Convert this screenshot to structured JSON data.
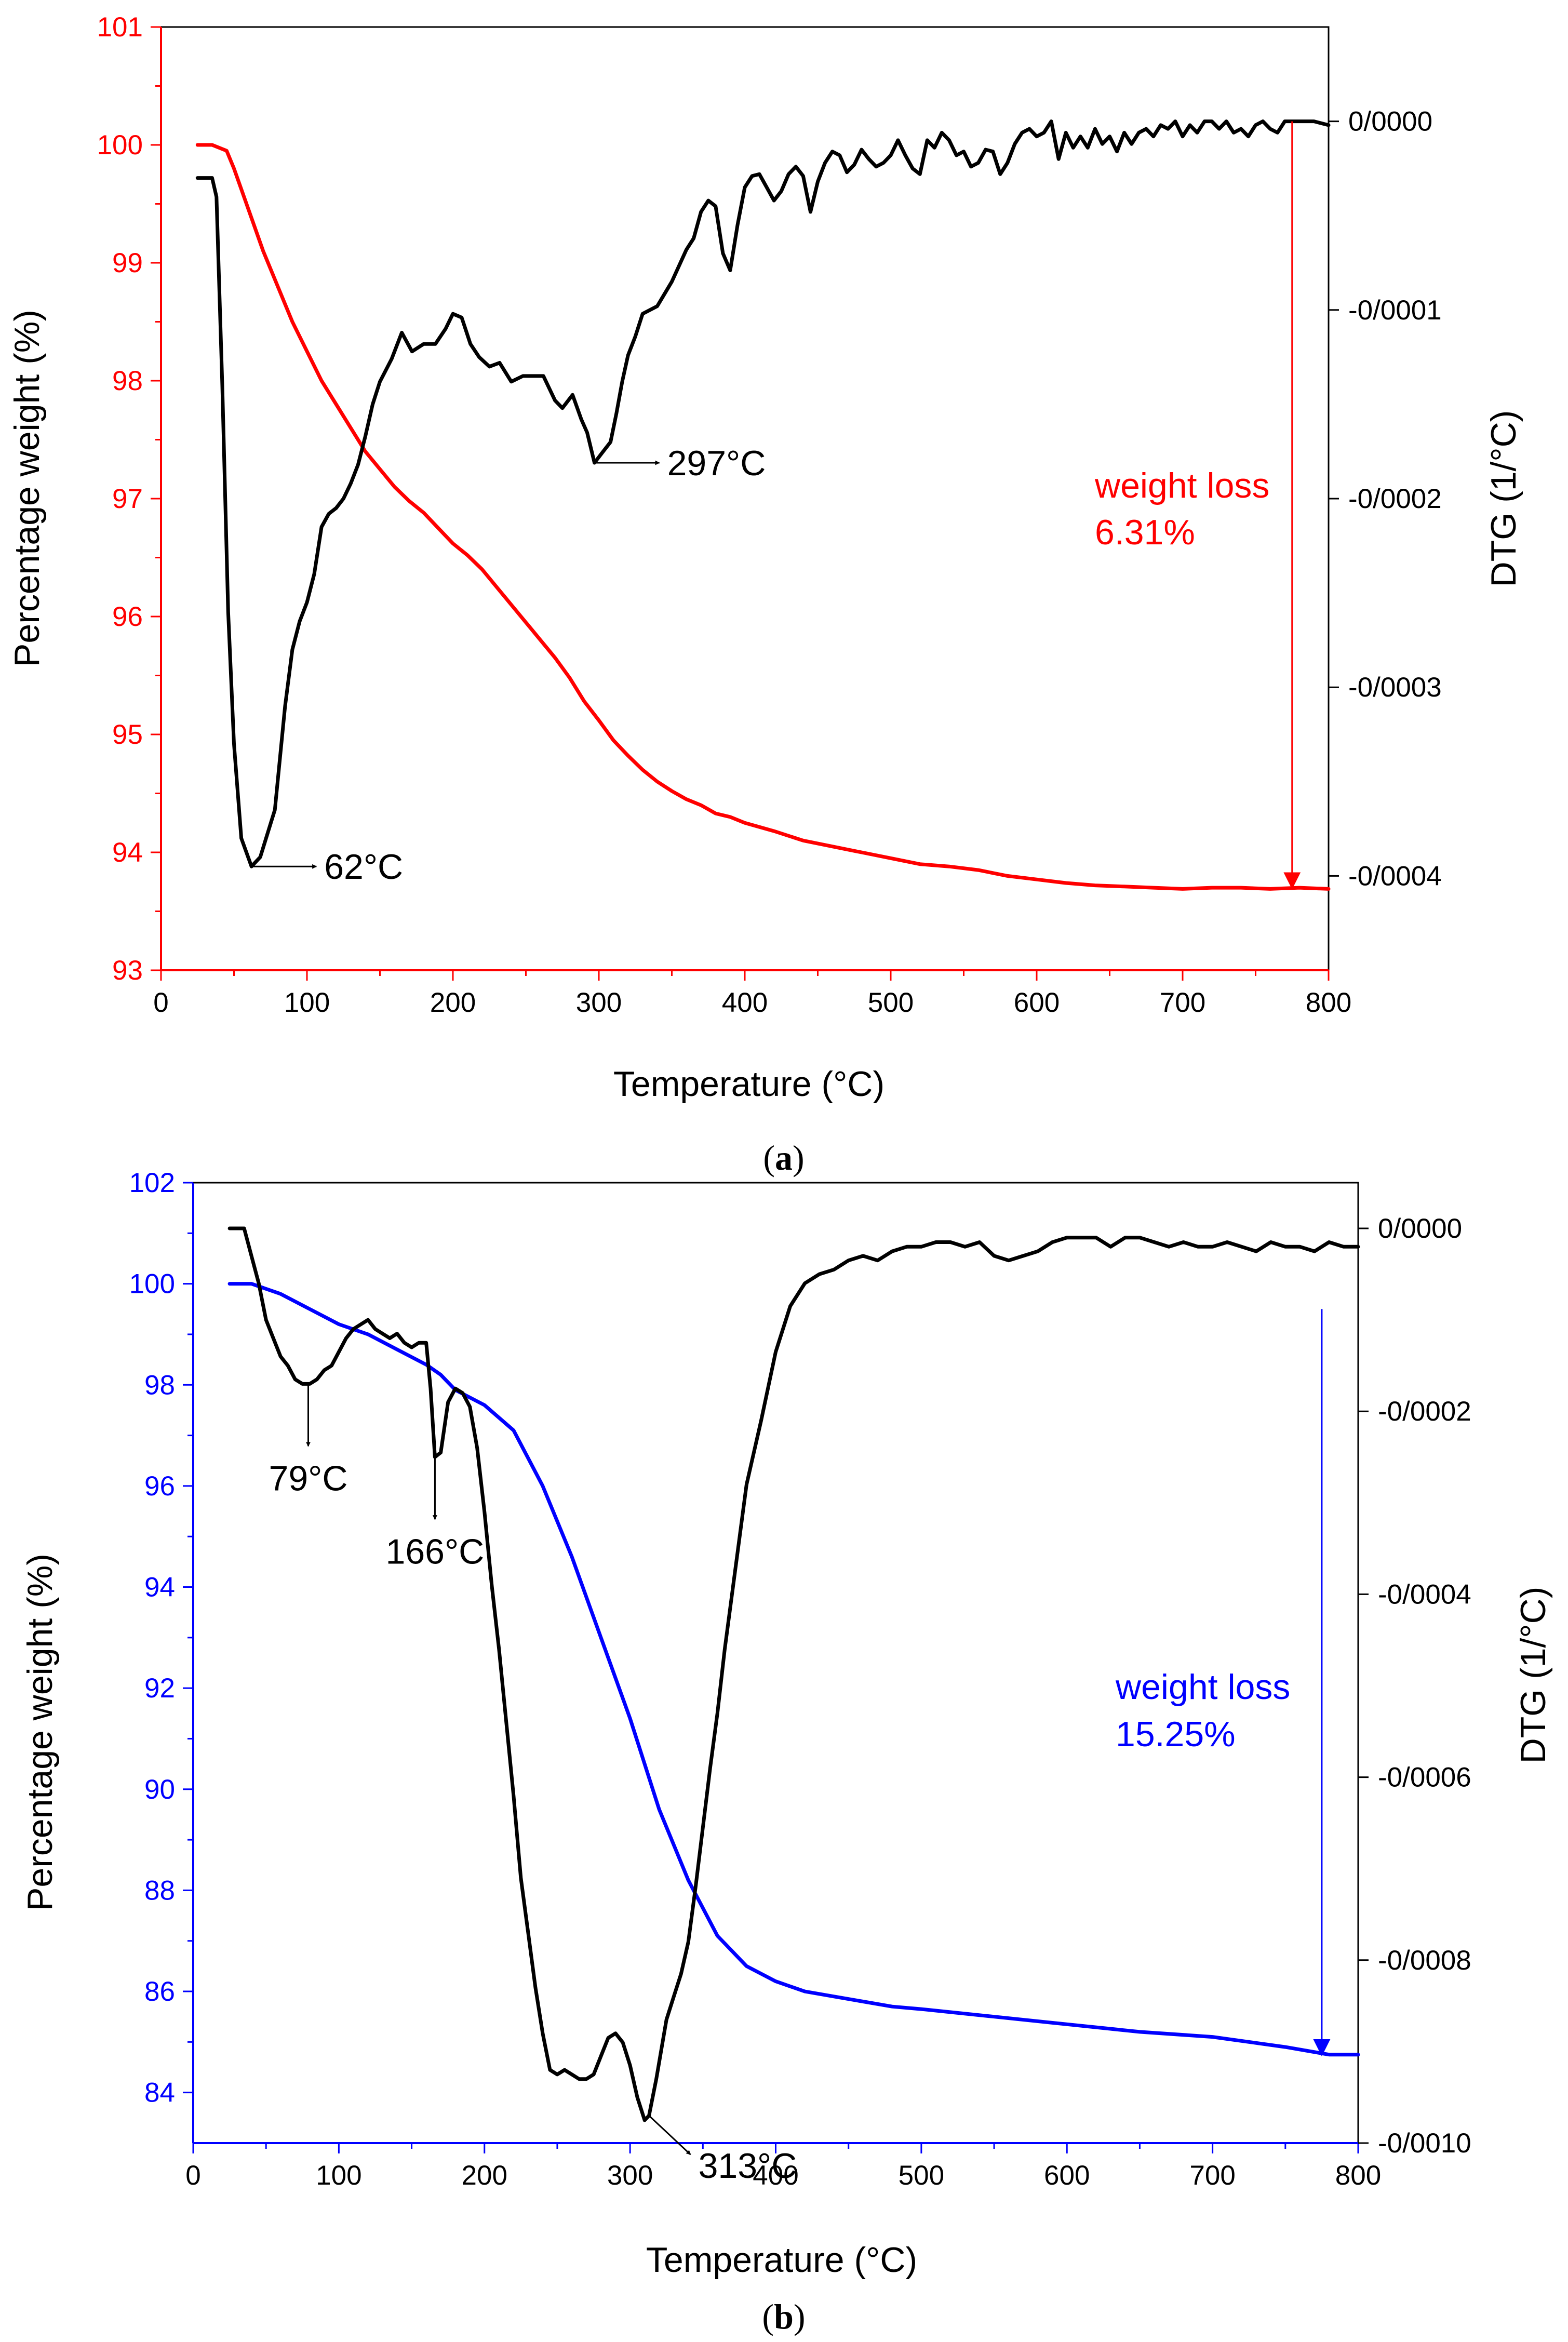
{
  "colors": {
    "panel_a_weight": "#ff0000",
    "panel_b_weight": "#0000ff",
    "dtg": "#000000",
    "axis": "#000000"
  },
  "chart_data": [
    {
      "id": "a",
      "type": "line",
      "caption": {
        "open": "(",
        "letter": "a",
        "close": ")"
      },
      "xlabel": "Temperature (°C)",
      "ylabel_left": "Percentage weight (%)",
      "ylabel_right": "DTG (1/°C)",
      "xlim": [
        0,
        800
      ],
      "ylim_left": [
        93,
        101
      ],
      "ylim_right": [
        -0.00045,
        5e-05
      ],
      "x_ticks": [
        "0",
        "100",
        "200",
        "300",
        "400",
        "500",
        "600",
        "700",
        "800"
      ],
      "y_left_ticks": [
        "93",
        "94",
        "95",
        "96",
        "97",
        "98",
        "99",
        "100",
        "101"
      ],
      "y_right_ticks": [
        "0/0000",
        "-0/0001",
        "-0/0002",
        "-0/0003",
        "-0/0004"
      ],
      "axis_color": "#ff0000",
      "grid": false,
      "series": [
        {
          "name": "Percentage weight",
          "axis": "left",
          "color": "#ff0000",
          "x": [
            25,
            35,
            45,
            50,
            60,
            70,
            80,
            90,
            100,
            110,
            120,
            130,
            140,
            150,
            160,
            170,
            180,
            190,
            200,
            210,
            220,
            230,
            240,
            250,
            260,
            270,
            280,
            290,
            300,
            310,
            320,
            330,
            340,
            350,
            360,
            370,
            380,
            390,
            400,
            420,
            440,
            460,
            480,
            500,
            520,
            540,
            560,
            580,
            600,
            620,
            640,
            660,
            680,
            700,
            720,
            740,
            760,
            780,
            800
          ],
          "y": [
            100,
            100,
            99.95,
            99.8,
            99.45,
            99.1,
            98.8,
            98.5,
            98.25,
            98.0,
            97.8,
            97.6,
            97.4,
            97.25,
            97.1,
            96.98,
            96.88,
            96.75,
            96.62,
            96.52,
            96.4,
            96.25,
            96.1,
            95.95,
            95.8,
            95.65,
            95.48,
            95.28,
            95.12,
            94.95,
            94.82,
            94.7,
            94.6,
            94.52,
            94.45,
            94.4,
            94.33,
            94.3,
            94.25,
            94.18,
            94.1,
            94.05,
            94.0,
            93.95,
            93.9,
            93.88,
            93.85,
            93.8,
            93.77,
            93.74,
            93.72,
            93.71,
            93.7,
            93.69,
            93.7,
            93.7,
            93.69,
            93.7,
            93.69
          ]
        },
        {
          "name": "DTG",
          "axis": "right",
          "color": "#000000",
          "x": [
            25,
            35,
            38,
            42,
            46,
            50,
            55,
            62,
            68,
            72,
            78,
            85,
            90,
            95,
            100,
            105,
            110,
            115,
            120,
            125,
            130,
            135,
            140,
            145,
            150,
            158,
            165,
            172,
            180,
            188,
            195,
            200,
            206,
            212,
            218,
            225,
            232,
            240,
            248,
            255,
            262,
            270,
            275,
            282,
            288,
            292,
            297,
            302,
            308,
            312,
            316,
            320,
            325,
            330,
            340,
            350,
            360,
            365,
            370,
            375,
            380,
            385,
            390,
            395,
            400,
            405,
            410,
            415,
            420,
            425,
            430,
            435,
            440,
            445,
            450,
            455,
            460,
            465,
            470,
            475,
            480,
            485,
            490,
            495,
            500,
            505,
            510,
            515,
            520,
            525,
            530,
            535,
            540,
            545,
            550,
            555,
            560,
            565,
            570,
            575,
            580,
            585,
            590,
            595,
            600,
            605,
            610,
            615,
            620,
            625,
            630,
            635,
            640,
            645,
            650,
            655,
            660,
            665,
            670,
            675,
            680,
            685,
            690,
            695,
            700,
            705,
            710,
            715,
            720,
            725,
            730,
            735,
            740,
            745,
            750,
            755,
            760,
            765,
            770,
            775,
            780,
            790,
            800
          ],
          "y": [
            -3e-05,
            -3e-05,
            -4e-05,
            -0.00014,
            -0.00026,
            -0.00033,
            -0.00038,
            -0.000395,
            -0.00039,
            -0.00038,
            -0.000365,
            -0.00031,
            -0.00028,
            -0.000265,
            -0.000255,
            -0.00024,
            -0.000215,
            -0.000208,
            -0.000205,
            -0.0002,
            -0.000192,
            -0.000182,
            -0.000167,
            -0.00015,
            -0.000138,
            -0.000126,
            -0.000112,
            -0.000122,
            -0.000118,
            -0.000118,
            -0.00011,
            -0.000102,
            -0.000104,
            -0.000118,
            -0.000125,
            -0.00013,
            -0.000128,
            -0.000138,
            -0.000135,
            -0.000135,
            -0.000135,
            -0.000148,
            -0.000152,
            -0.000145,
            -0.000158,
            -0.000165,
            -0.000181,
            -0.000176,
            -0.00017,
            -0.000155,
            -0.000138,
            -0.000124,
            -0.000114,
            -0.000102,
            -9.8e-05,
            -8.5e-05,
            -6.8e-05,
            -6.2e-05,
            -4.8e-05,
            -4.2e-05,
            -4.5e-05,
            -7e-05,
            -7.9e-05,
            -5.5e-05,
            -3.5e-05,
            -2.9e-05,
            -2.8e-05,
            -3.5e-05,
            -4.2e-05,
            -3.7e-05,
            -2.8e-05,
            -2.4e-05,
            -2.9e-05,
            -4.8e-05,
            -3.2e-05,
            -2.2e-05,
            -1.6e-05,
            -1.8e-05,
            -2.7e-05,
            -2.3e-05,
            -1.5e-05,
            -2e-05,
            -2.4e-05,
            -2.2e-05,
            -1.8e-05,
            -1e-05,
            -1.8e-05,
            -2.5e-05,
            -2.8e-05,
            -1e-05,
            -1.4e-05,
            -6e-06,
            -1e-05,
            -1.8e-05,
            -1.6e-05,
            -2.4e-05,
            -2.2e-05,
            -1.5e-05,
            -1.6e-05,
            -2.8e-05,
            -2.2e-05,
            -1.2e-05,
            -6e-06,
            -4e-06,
            -8e-06,
            -6e-06,
            0.0,
            -2e-05,
            -6e-06,
            -1.4e-05,
            -8e-06,
            -1.4e-05,
            -4e-06,
            -1.2e-05,
            -8e-06,
            -1.6e-05,
            -6e-06,
            -1.2e-05,
            -6e-06,
            -4e-06,
            -8e-06,
            -2e-06,
            -4e-06,
            0.0,
            -8e-06,
            -2e-06,
            -6e-06,
            0.0,
            0.0,
            -4e-06,
            0.0,
            -6e-06,
            -4e-06,
            -8e-06,
            -2e-06,
            0.0,
            -4e-06,
            -6e-06,
            0.0,
            0.0,
            0.0,
            0.0,
            -2e-06
          ]
        }
      ],
      "annotations": [
        {
          "text": "62°C",
          "x": 62,
          "y": -0.000395,
          "axis": "right",
          "arrow": "right",
          "color": "#000000"
        },
        {
          "text": "297°C",
          "x": 297,
          "y": -0.000181,
          "axis": "right",
          "arrow": "right",
          "color": "#000000"
        }
      ],
      "weight_loss": {
        "label": "weight loss",
        "value": "6.31%",
        "color": "#ff0000",
        "x": 775,
        "y_top": 100.2,
        "y_bottom": 93.7
      }
    },
    {
      "id": "b",
      "type": "line",
      "caption": {
        "open": "(",
        "letter": "b",
        "close": ")"
      },
      "xlabel": "Temperature (°C)",
      "ylabel_left": "Percentage weight (%)",
      "ylabel_right": "DTG (1/°C)",
      "xlim": [
        0,
        800
      ],
      "ylim_left": [
        83,
        102
      ],
      "ylim_right": [
        -0.001,
        5e-05
      ],
      "x_ticks": [
        "0",
        "100",
        "200",
        "300",
        "400",
        "500",
        "600",
        "700",
        "800"
      ],
      "y_left_ticks": [
        "84",
        "86",
        "88",
        "90",
        "92",
        "94",
        "96",
        "98",
        "100",
        "102"
      ],
      "y_right_ticks": [
        "0/0000",
        "-0/0002",
        "-0/0004",
        "-0/0006",
        "-0/0008",
        "-0/0010"
      ],
      "axis_color": "#0000ff",
      "grid": false,
      "series": [
        {
          "name": "Percentage weight",
          "axis": "left",
          "color": "#0000ff",
          "x": [
            25,
            40,
            60,
            80,
            100,
            120,
            140,
            160,
            170,
            180,
            200,
            220,
            240,
            260,
            280,
            300,
            320,
            340,
            360,
            380,
            400,
            420,
            440,
            460,
            480,
            500,
            550,
            600,
            650,
            700,
            750,
            780,
            800
          ],
          "y": [
            100,
            100,
            99.8,
            99.5,
            99.2,
            99.0,
            98.7,
            98.4,
            98.2,
            97.9,
            97.6,
            97.1,
            96.0,
            94.6,
            93.0,
            91.4,
            89.6,
            88.2,
            87.1,
            86.5,
            86.2,
            86.0,
            85.9,
            85.8,
            85.7,
            85.65,
            85.5,
            85.35,
            85.2,
            85.1,
            84.9,
            84.75,
            84.75
          ]
        },
        {
          "name": "DTG",
          "axis": "right",
          "color": "#000000",
          "x": [
            25,
            35,
            40,
            45,
            50,
            55,
            60,
            65,
            70,
            75,
            80,
            85,
            90,
            95,
            100,
            105,
            110,
            115,
            120,
            125,
            130,
            135,
            140,
            145,
            150,
            155,
            160,
            163,
            166,
            170,
            175,
            180,
            185,
            190,
            195,
            200,
            205,
            210,
            215,
            220,
            225,
            230,
            235,
            240,
            245,
            250,
            255,
            260,
            265,
            270,
            275,
            280,
            285,
            290,
            295,
            300,
            305,
            310,
            313,
            318,
            325,
            330,
            335,
            340,
            345,
            350,
            355,
            360,
            365,
            370,
            375,
            380,
            390,
            400,
            410,
            420,
            430,
            440,
            450,
            460,
            470,
            480,
            490,
            500,
            510,
            520,
            530,
            540,
            550,
            560,
            570,
            580,
            590,
            600,
            610,
            620,
            630,
            640,
            650,
            660,
            670,
            680,
            690,
            700,
            710,
            720,
            730,
            740,
            750,
            760,
            770,
            780,
            790,
            800
          ],
          "y": [
            0.0,
            0.0,
            -3e-05,
            -6e-05,
            -0.0001,
            -0.00012,
            -0.00014,
            -0.00015,
            -0.000165,
            -0.00017,
            -0.00017,
            -0.000165,
            -0.000155,
            -0.00015,
            -0.000135,
            -0.00012,
            -0.00011,
            -0.000105,
            -0.0001,
            -0.00011,
            -0.000115,
            -0.00012,
            -0.000115,
            -0.000125,
            -0.00013,
            -0.000125,
            -0.000125,
            -0.000175,
            -0.00025,
            -0.000245,
            -0.00019,
            -0.000175,
            -0.00018,
            -0.000195,
            -0.00024,
            -0.00031,
            -0.00039,
            -0.00046,
            -0.00054,
            -0.00062,
            -0.00071,
            -0.00077,
            -0.00083,
            -0.00088,
            -0.00092,
            -0.000925,
            -0.00092,
            -0.000925,
            -0.00093,
            -0.00093,
            -0.000925,
            -0.000905,
            -0.000885,
            -0.00088,
            -0.00089,
            -0.000915,
            -0.00095,
            -0.000975,
            -0.00097,
            -0.00093,
            -0.000865,
            -0.00084,
            -0.000815,
            -0.00078,
            -0.00072,
            -0.000655,
            -0.00059,
            -0.00053,
            -0.00046,
            -0.0004,
            -0.00034,
            -0.00028,
            -0.00021,
            -0.000135,
            -8.5e-05,
            -6e-05,
            -5e-05,
            -4.5e-05,
            -3.5e-05,
            -3e-05,
            -3.5e-05,
            -2.5e-05,
            -2e-05,
            -2e-05,
            -1.5e-05,
            -1.5e-05,
            -2e-05,
            -1.5e-05,
            -3e-05,
            -3.5e-05,
            -3e-05,
            -2.5e-05,
            -1.5e-05,
            -1e-05,
            -1e-05,
            -1e-05,
            -2e-05,
            -1e-05,
            -1e-05,
            -1.5e-05,
            -2e-05,
            -1.5e-05,
            -2e-05,
            -2e-05,
            -1.5e-05,
            -2e-05,
            -2.5e-05,
            -1.5e-05,
            -2e-05,
            -2e-05,
            -2.5e-05,
            -1.5e-05,
            -2e-05,
            -2e-05
          ]
        }
      ],
      "annotations": [
        {
          "text": "79°C",
          "x": 79,
          "y": -0.00017,
          "axis": "right",
          "arrow": "down",
          "color": "#000000"
        },
        {
          "text": "166°C",
          "x": 166,
          "y": -0.00025,
          "axis": "right",
          "arrow": "down",
          "color": "#000000"
        },
        {
          "text": "313°C",
          "x": 313,
          "y": -0.00097,
          "axis": "right",
          "arrow": "down-right",
          "color": "#000000"
        }
      ],
      "weight_loss": {
        "label": "weight loss",
        "value": "15.25%",
        "color": "#0000ff",
        "x": 775,
        "y_top": 99.5,
        "y_bottom": 84.75
      }
    }
  ]
}
